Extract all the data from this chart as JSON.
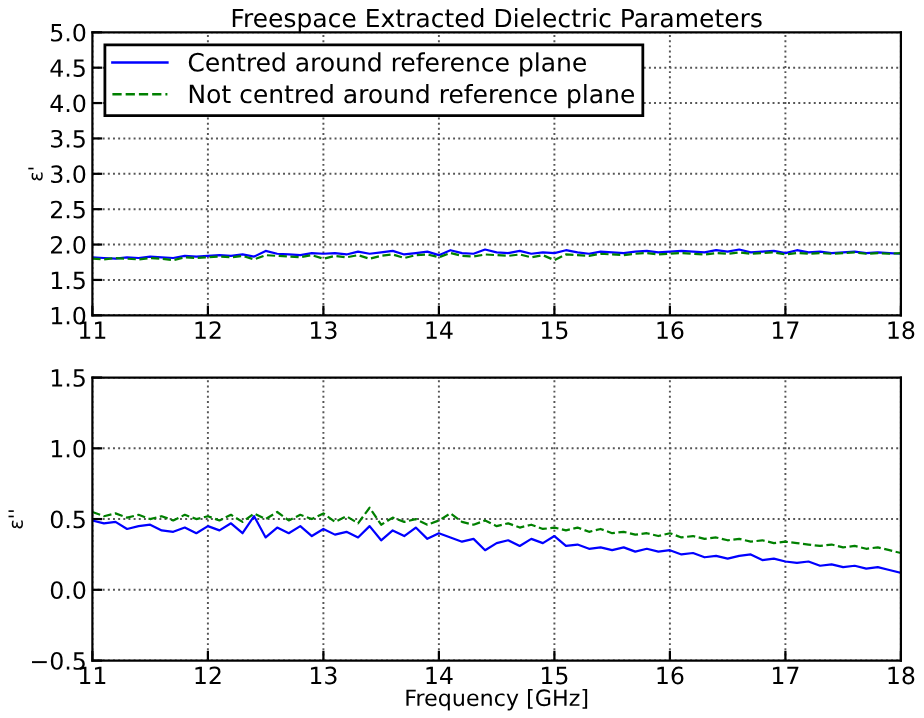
{
  "chart_data": [
    {
      "type": "line",
      "title": "Freespace Extracted Dielectric Parameters",
      "ylabel": "ε'",
      "x": [
        11.0,
        11.1,
        11.2,
        11.3,
        11.4,
        11.5,
        11.6,
        11.7,
        11.8,
        11.9,
        12.0,
        12.1,
        12.2,
        12.3,
        12.4,
        12.5,
        12.6,
        12.7,
        12.8,
        12.9,
        13.0,
        13.1,
        13.2,
        13.3,
        13.4,
        13.5,
        13.6,
        13.7,
        13.8,
        13.9,
        14.0,
        14.1,
        14.2,
        14.3,
        14.4,
        14.5,
        14.6,
        14.7,
        14.8,
        14.9,
        15.0,
        15.1,
        15.2,
        15.3,
        15.4,
        15.5,
        15.6,
        15.7,
        15.8,
        15.9,
        16.0,
        16.1,
        16.2,
        16.3,
        16.4,
        16.5,
        16.6,
        16.7,
        16.8,
        16.9,
        17.0,
        17.1,
        17.2,
        17.3,
        17.4,
        17.5,
        17.6,
        17.7,
        17.8,
        17.9,
        18.0
      ],
      "series": [
        {
          "name": "Centred around reference plane",
          "color": "#0000ff",
          "line_style": "solid",
          "values": [
            1.82,
            1.81,
            1.8,
            1.82,
            1.81,
            1.83,
            1.82,
            1.81,
            1.84,
            1.83,
            1.84,
            1.85,
            1.84,
            1.86,
            1.83,
            1.91,
            1.87,
            1.86,
            1.85,
            1.88,
            1.87,
            1.88,
            1.86,
            1.9,
            1.87,
            1.89,
            1.91,
            1.86,
            1.88,
            1.9,
            1.85,
            1.92,
            1.88,
            1.87,
            1.93,
            1.89,
            1.88,
            1.91,
            1.87,
            1.89,
            1.88,
            1.92,
            1.89,
            1.87,
            1.9,
            1.89,
            1.88,
            1.9,
            1.91,
            1.89,
            1.9,
            1.91,
            1.9,
            1.89,
            1.92,
            1.9,
            1.93,
            1.89,
            1.9,
            1.91,
            1.88,
            1.92,
            1.89,
            1.9,
            1.88,
            1.89,
            1.9,
            1.88,
            1.89,
            1.88,
            1.87
          ]
        },
        {
          "name": "Not centred around reference plane",
          "color": "#008000",
          "line_style": "dashed",
          "values": [
            1.8,
            1.79,
            1.81,
            1.8,
            1.79,
            1.81,
            1.8,
            1.78,
            1.82,
            1.81,
            1.82,
            1.83,
            1.82,
            1.84,
            1.79,
            1.85,
            1.84,
            1.83,
            1.82,
            1.85,
            1.8,
            1.84,
            1.82,
            1.85,
            1.8,
            1.84,
            1.86,
            1.81,
            1.85,
            1.86,
            1.82,
            1.88,
            1.84,
            1.83,
            1.86,
            1.85,
            1.84,
            1.86,
            1.82,
            1.85,
            1.78,
            1.86,
            1.85,
            1.84,
            1.87,
            1.86,
            1.85,
            1.87,
            1.88,
            1.86,
            1.87,
            1.88,
            1.87,
            1.86,
            1.88,
            1.87,
            1.89,
            1.87,
            1.88,
            1.89,
            1.86,
            1.88,
            1.87,
            1.88,
            1.87,
            1.88,
            1.89,
            1.87,
            1.88,
            1.87,
            1.88
          ]
        }
      ],
      "xlim": [
        11,
        18
      ],
      "xticks": [
        11,
        12,
        13,
        14,
        15,
        16,
        17,
        18
      ],
      "ylim": [
        1.0,
        5.0
      ],
      "yticks": [
        {
          "value": 1.0,
          "label": "1.0"
        },
        {
          "value": 1.5,
          "label": "1.5"
        },
        {
          "value": 2.0,
          "label": "2.0"
        },
        {
          "value": 2.5,
          "label": "2.5"
        },
        {
          "value": 3.0,
          "label": "3.0"
        },
        {
          "value": 3.5,
          "label": "3.5"
        },
        {
          "value": 4.0,
          "label": "4.0"
        },
        {
          "value": 4.5,
          "label": "4.5"
        },
        {
          "value": 5.0,
          "label": "5.0"
        }
      ],
      "grid": true,
      "legend": "top left"
    },
    {
      "type": "line",
      "xlabel": "Frequency [GHz]",
      "ylabel": "ε''",
      "x": [
        11.0,
        11.1,
        11.2,
        11.3,
        11.4,
        11.5,
        11.6,
        11.7,
        11.8,
        11.9,
        12.0,
        12.1,
        12.2,
        12.3,
        12.4,
        12.5,
        12.6,
        12.7,
        12.8,
        12.9,
        13.0,
        13.1,
        13.2,
        13.3,
        13.4,
        13.5,
        13.6,
        13.7,
        13.8,
        13.9,
        14.0,
        14.1,
        14.2,
        14.3,
        14.4,
        14.5,
        14.6,
        14.7,
        14.8,
        14.9,
        15.0,
        15.1,
        15.2,
        15.3,
        15.4,
        15.5,
        15.6,
        15.7,
        15.8,
        15.9,
        16.0,
        16.1,
        16.2,
        16.3,
        16.4,
        16.5,
        16.6,
        16.7,
        16.8,
        16.9,
        17.0,
        17.1,
        17.2,
        17.3,
        17.4,
        17.5,
        17.6,
        17.7,
        17.8,
        17.9,
        18.0
      ],
      "series": [
        {
          "color": "#0000ff",
          "line_style": "solid",
          "values": [
            0.49,
            0.47,
            0.48,
            0.43,
            0.45,
            0.46,
            0.42,
            0.41,
            0.44,
            0.4,
            0.45,
            0.42,
            0.47,
            0.4,
            0.52,
            0.37,
            0.44,
            0.4,
            0.45,
            0.38,
            0.43,
            0.39,
            0.41,
            0.37,
            0.45,
            0.35,
            0.42,
            0.38,
            0.44,
            0.36,
            0.4,
            0.37,
            0.34,
            0.36,
            0.28,
            0.33,
            0.35,
            0.31,
            0.36,
            0.33,
            0.38,
            0.31,
            0.32,
            0.29,
            0.3,
            0.28,
            0.3,
            0.27,
            0.29,
            0.27,
            0.28,
            0.25,
            0.26,
            0.23,
            0.24,
            0.22,
            0.24,
            0.25,
            0.21,
            0.22,
            0.2,
            0.19,
            0.2,
            0.17,
            0.18,
            0.16,
            0.17,
            0.15,
            0.16,
            0.14,
            0.12
          ]
        },
        {
          "color": "#008000",
          "line_style": "dashed",
          "values": [
            0.55,
            0.52,
            0.54,
            0.51,
            0.53,
            0.5,
            0.52,
            0.49,
            0.53,
            0.5,
            0.52,
            0.49,
            0.53,
            0.48,
            0.54,
            0.5,
            0.55,
            0.49,
            0.53,
            0.5,
            0.54,
            0.48,
            0.52,
            0.47,
            0.58,
            0.46,
            0.51,
            0.48,
            0.5,
            0.46,
            0.49,
            0.54,
            0.48,
            0.46,
            0.49,
            0.45,
            0.47,
            0.44,
            0.46,
            0.43,
            0.44,
            0.42,
            0.44,
            0.41,
            0.43,
            0.4,
            0.41,
            0.39,
            0.4,
            0.38,
            0.4,
            0.37,
            0.38,
            0.36,
            0.37,
            0.35,
            0.36,
            0.34,
            0.35,
            0.33,
            0.34,
            0.33,
            0.32,
            0.31,
            0.32,
            0.3,
            0.31,
            0.29,
            0.3,
            0.28,
            0.26
          ]
        }
      ],
      "xlim": [
        11,
        18
      ],
      "xticks": [
        11,
        12,
        13,
        14,
        15,
        16,
        17,
        18
      ],
      "ylim": [
        -0.5,
        1.5
      ],
      "yticks": [
        {
          "value": -0.5,
          "label": "−0.5"
        },
        {
          "value": 0.0,
          "label": "0.0"
        },
        {
          "value": 0.5,
          "label": "0.5"
        },
        {
          "value": 1.0,
          "label": "1.0"
        },
        {
          "value": 1.5,
          "label": "1.5"
        }
      ],
      "grid": true
    }
  ]
}
